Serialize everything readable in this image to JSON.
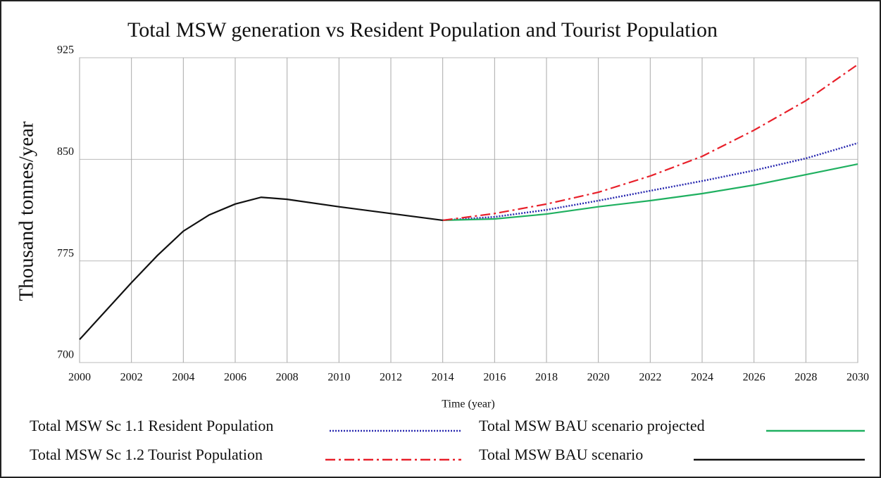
{
  "chart_data": {
    "type": "line",
    "title": "Total MSW generation vs Resident Population and Tourist Population",
    "xlabel": "Time (year)",
    "ylabel": "Thousand tonnes/year",
    "xlim": [
      2000,
      2030
    ],
    "xticks": [
      2000,
      2002,
      2004,
      2006,
      2008,
      2010,
      2012,
      2014,
      2016,
      2018,
      2020,
      2022,
      2024,
      2026,
      2028,
      2030
    ],
    "ylim": [
      700,
      925
    ],
    "yticks": [
      700,
      775,
      850,
      925
    ],
    "grid": true,
    "series": [
      {
        "name": "Total MSW Sc 1.1 Resident Population",
        "color": "#2a2ab0",
        "dash": "dotted",
        "x": [
          2014,
          2016,
          2018,
          2020,
          2022,
          2024,
          2026,
          2028,
          2030
        ],
        "values": [
          805,
          807.5,
          812.7,
          819.5,
          826.8,
          834,
          841.8,
          850.7,
          862
        ]
      },
      {
        "name": "Total MSW BAU scenario projected",
        "color": "#1fb060",
        "dash": "solid",
        "x": [
          2014,
          2016,
          2018,
          2020,
          2022,
          2024,
          2026,
          2028,
          2030
        ],
        "values": [
          805,
          806,
          809.6,
          815,
          819.5,
          824.7,
          831,
          838.7,
          846.5
        ]
      },
      {
        "name": "Total MSW Sc 1.2 Tourist Population",
        "color": "#e8202a",
        "dash": "dashdot",
        "x": [
          2014,
          2016,
          2018,
          2020,
          2022,
          2024,
          2026,
          2028,
          2030
        ],
        "values": [
          805,
          810,
          817,
          825.7,
          837.7,
          852.2,
          871.5,
          893.3,
          920
        ]
      },
      {
        "name": "Total MSW BAU scenario",
        "color": "#111111",
        "dash": "solid",
        "x": [
          2000,
          2001,
          2002,
          2003,
          2004,
          2005,
          2006,
          2007,
          2008,
          2010,
          2012,
          2014
        ],
        "values": [
          717,
          738,
          759,
          779,
          797,
          809,
          817,
          822,
          820.5,
          815,
          810,
          805
        ]
      }
    ]
  }
}
